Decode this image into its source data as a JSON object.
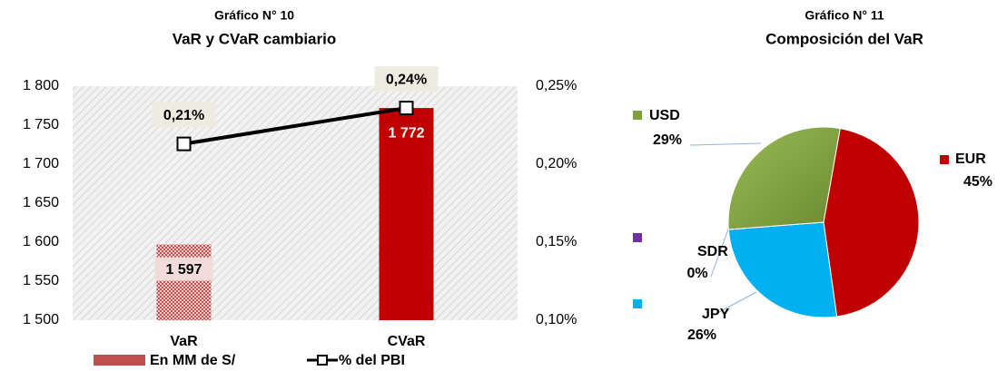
{
  "chart_data": [
    {
      "type": "bar_line",
      "title": "Gráfico N° 10",
      "subtitle": "VaR y CVaR cambiario",
      "categories": [
        "VaR",
        "CVaR"
      ],
      "series": [
        {
          "name": "En MM de S/",
          "type": "bar",
          "colors": [
            "#c0504d",
            "#c00000"
          ],
          "values": [
            1597,
            1772
          ],
          "value_labels": [
            "1 597",
            "1 772"
          ]
        },
        {
          "name": "% del PBI",
          "type": "line",
          "axis": "y2",
          "color": "#000000",
          "values": [
            0.213,
            0.236
          ],
          "value_labels": [
            "0,21%",
            "0,24%"
          ]
        }
      ],
      "ylim": [
        1500,
        1800
      ],
      "yticks": [
        {
          "value": 1500,
          "label": "1 500"
        },
        {
          "value": 1550,
          "label": "1 550"
        },
        {
          "value": 1600,
          "label": "1 600"
        },
        {
          "value": 1650,
          "label": "1 650"
        },
        {
          "value": 1700,
          "label": "1 700"
        },
        {
          "value": 1750,
          "label": "1 750"
        },
        {
          "value": 1800,
          "label": "1 800"
        }
      ],
      "y2lim": [
        0.1,
        0.25
      ],
      "y2ticks": [
        {
          "value": 0.1,
          "label": "0,10%"
        },
        {
          "value": 0.15,
          "label": "0,15%"
        },
        {
          "value": 0.2,
          "label": "0,20%"
        },
        {
          "value": 0.25,
          "label": "0,25%"
        }
      ],
      "grid": false,
      "legend": "bottom"
    },
    {
      "type": "pie",
      "title": "Gráfico N° 11",
      "subtitle": "Composición del VaR",
      "categories": [
        "EUR",
        "JPY",
        "SDR",
        "USD"
      ],
      "values": [
        45,
        26,
        0,
        29
      ],
      "value_labels": [
        "45%",
        "26%",
        "0%",
        "29%"
      ],
      "colors": [
        "#c00000",
        "#00b0f0",
        "#7030a0",
        "#7f9f3c"
      ]
    }
  ]
}
